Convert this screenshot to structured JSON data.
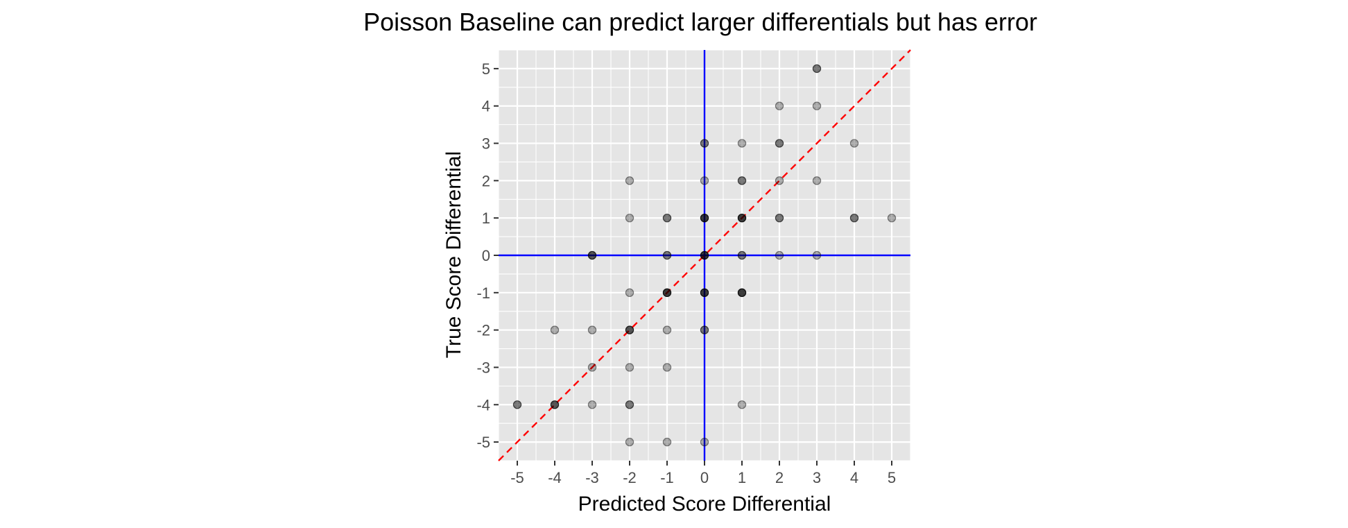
{
  "chart_data": {
    "type": "scatter",
    "title": "Poisson Baseline can predict larger differentials but has error",
    "xlabel": "Predicted Score Differential",
    "ylabel": "True Score Differential",
    "xlim": [
      -5.5,
      5.5
    ],
    "ylim": [
      -5.5,
      5.5
    ],
    "xticks": [
      "-5",
      "-4",
      "-3",
      "-2",
      "-1",
      "0",
      "1",
      "2",
      "3",
      "4",
      "5"
    ],
    "yticks": [
      "-5",
      "-4",
      "-3",
      "-2",
      "-1",
      "0",
      "1",
      "2",
      "3",
      "4",
      "5"
    ],
    "grid": true,
    "point_color": "#000000",
    "identity_line_color": "#ff0000",
    "zero_line_color": "#0000ff",
    "panel_background": "#e5e5e5",
    "points": [
      {
        "x": 3,
        "y": 5,
        "n": 2
      },
      {
        "x": 2,
        "y": 4,
        "n": 1
      },
      {
        "x": 3,
        "y": 4,
        "n": 1
      },
      {
        "x": 0,
        "y": 3,
        "n": 2
      },
      {
        "x": 1,
        "y": 3,
        "n": 1
      },
      {
        "x": 2,
        "y": 3,
        "n": 2
      },
      {
        "x": 4,
        "y": 3,
        "n": 1
      },
      {
        "x": -2,
        "y": 2,
        "n": 1
      },
      {
        "x": 0,
        "y": 2,
        "n": 1
      },
      {
        "x": 1,
        "y": 2,
        "n": 2
      },
      {
        "x": 2,
        "y": 2,
        "n": 1
      },
      {
        "x": 3,
        "y": 2,
        "n": 1
      },
      {
        "x": -2,
        "y": 1,
        "n": 1
      },
      {
        "x": -1,
        "y": 1,
        "n": 2
      },
      {
        "x": 0,
        "y": 1,
        "n": 4
      },
      {
        "x": 1,
        "y": 1,
        "n": 4
      },
      {
        "x": 2,
        "y": 1,
        "n": 2
      },
      {
        "x": 4,
        "y": 1,
        "n": 2
      },
      {
        "x": 5,
        "y": 1,
        "n": 1
      },
      {
        "x": -3,
        "y": 0,
        "n": 3
      },
      {
        "x": -1,
        "y": 0,
        "n": 2
      },
      {
        "x": 0,
        "y": 0,
        "n": 4
      },
      {
        "x": 1,
        "y": 0,
        "n": 2
      },
      {
        "x": 2,
        "y": 0,
        "n": 1
      },
      {
        "x": 3,
        "y": 0,
        "n": 1
      },
      {
        "x": -2,
        "y": -1,
        "n": 1
      },
      {
        "x": -1,
        "y": -1,
        "n": 4
      },
      {
        "x": 0,
        "y": -1,
        "n": 4
      },
      {
        "x": 1,
        "y": -1,
        "n": 4
      },
      {
        "x": -4,
        "y": -2,
        "n": 1
      },
      {
        "x": -3,
        "y": -2,
        "n": 1
      },
      {
        "x": -2,
        "y": -2,
        "n": 3
      },
      {
        "x": -1,
        "y": -2,
        "n": 1
      },
      {
        "x": 0,
        "y": -2,
        "n": 2
      },
      {
        "x": -3,
        "y": -3,
        "n": 1
      },
      {
        "x": -2,
        "y": -3,
        "n": 1
      },
      {
        "x": -1,
        "y": -3,
        "n": 1
      },
      {
        "x": -5,
        "y": -4,
        "n": 2
      },
      {
        "x": -4,
        "y": -4,
        "n": 3
      },
      {
        "x": -3,
        "y": -4,
        "n": 1
      },
      {
        "x": -2,
        "y": -4,
        "n": 2
      },
      {
        "x": 1,
        "y": -4,
        "n": 1
      },
      {
        "x": -2,
        "y": -5,
        "n": 1
      },
      {
        "x": -1,
        "y": -5,
        "n": 1
      },
      {
        "x": 0,
        "y": -5,
        "n": 1
      }
    ]
  }
}
